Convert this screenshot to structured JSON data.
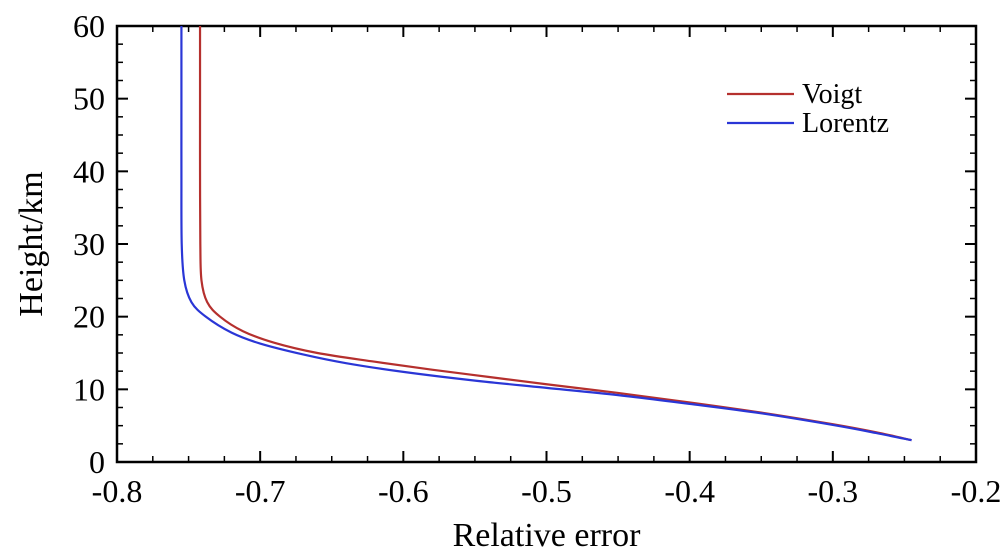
{
  "chart_data": {
    "type": "line",
    "title": "",
    "xlabel": "Relative error",
    "ylabel": "Height/km",
    "xlim": [
      -0.8,
      -0.2
    ],
    "ylim": [
      0,
      60
    ],
    "xticks": [
      "-0.8",
      "-0.7",
      "-0.6",
      "-0.5",
      "-0.4",
      "-0.3",
      "-0.2"
    ],
    "yticks": [
      "0",
      "10",
      "20",
      "30",
      "40",
      "50",
      "60"
    ],
    "grid": false,
    "legend_position": "top-right",
    "series": [
      {
        "name": "Voigt",
        "color": "#b5302e",
        "points": [
          [
            -0.742,
            60
          ],
          [
            -0.742,
            50
          ],
          [
            -0.742,
            40
          ],
          [
            -0.7418,
            30
          ],
          [
            -0.741,
            25
          ],
          [
            -0.737,
            22
          ],
          [
            -0.728,
            20
          ],
          [
            -0.712,
            18
          ],
          [
            -0.69,
            16.4
          ],
          [
            -0.66,
            15
          ],
          [
            -0.62,
            13.8
          ],
          [
            -0.58,
            12.7
          ],
          [
            -0.54,
            11.7
          ],
          [
            -0.5,
            10.7
          ],
          [
            -0.45,
            9.5
          ],
          [
            -0.4,
            8.2
          ],
          [
            -0.35,
            6.8
          ],
          [
            -0.3,
            5.2
          ],
          [
            -0.27,
            4.1
          ],
          [
            -0.245,
            3
          ]
        ]
      },
      {
        "name": "Lorentz",
        "color": "#2a36d6",
        "points": [
          [
            -0.755,
            60
          ],
          [
            -0.755,
            50
          ],
          [
            -0.755,
            40
          ],
          [
            -0.7548,
            30
          ],
          [
            -0.753,
            25
          ],
          [
            -0.748,
            22
          ],
          [
            -0.738,
            20
          ],
          [
            -0.72,
            17.8
          ],
          [
            -0.7,
            16.3
          ],
          [
            -0.67,
            14.8
          ],
          [
            -0.64,
            13.6
          ],
          [
            -0.6,
            12.4
          ],
          [
            -0.55,
            11.2
          ],
          [
            -0.5,
            10.2
          ],
          [
            -0.45,
            9.2
          ],
          [
            -0.4,
            8.0
          ],
          [
            -0.35,
            6.7
          ],
          [
            -0.3,
            5.1
          ],
          [
            -0.27,
            4.0
          ],
          [
            -0.245,
            3
          ]
        ]
      }
    ]
  }
}
